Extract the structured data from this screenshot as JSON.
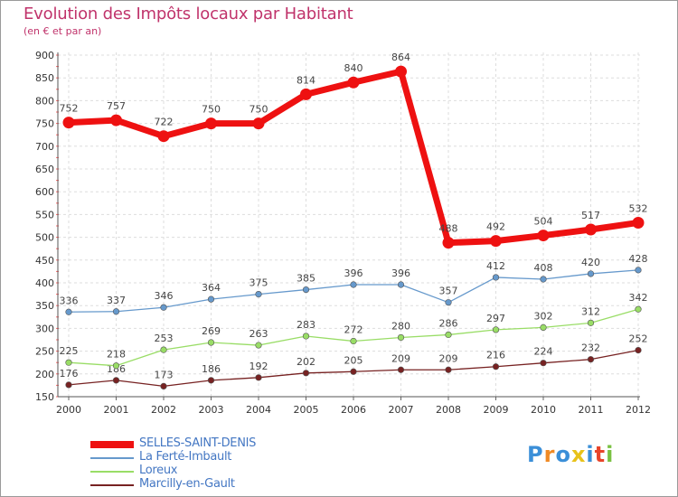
{
  "header": {
    "title": "Evolution des Impôts locaux par Habitant",
    "subtitle": "(en € et par an)"
  },
  "chart_data": {
    "type": "line",
    "title": "Evolution des Impôts locaux par Habitant",
    "subtitle": "(en € et par an)",
    "xlabel": "",
    "ylabel": "",
    "ylim": [
      150,
      900
    ],
    "yticks": [
      150,
      200,
      250,
      300,
      350,
      400,
      450,
      500,
      550,
      600,
      650,
      700,
      750,
      800,
      850,
      900
    ],
    "x": [
      "2000",
      "2001",
      "2002",
      "2003",
      "2004",
      "2005",
      "2006",
      "2007",
      "2008",
      "2009",
      "2010",
      "2011",
      "2012"
    ],
    "grid": true,
    "legend_position": "bottom-left",
    "series": [
      {
        "name": "SELLES-SAINT-DENIS",
        "color": "#ee1111",
        "values": [
          752,
          757,
          722,
          750,
          750,
          814,
          840,
          864,
          488,
          492,
          504,
          517,
          532
        ]
      },
      {
        "name": "La Ferté-Imbault",
        "color": "#6699cc",
        "values": [
          336,
          337,
          346,
          364,
          375,
          385,
          396,
          396,
          357,
          412,
          408,
          420,
          428
        ]
      },
      {
        "name": "Loreux",
        "color": "#99dd66",
        "values": [
          225,
          218,
          253,
          269,
          263,
          283,
          272,
          280,
          286,
          297,
          302,
          312,
          342
        ]
      },
      {
        "name": "Marcilly-en-Gault",
        "color": "#772222",
        "values": [
          176,
          186,
          173,
          186,
          192,
          202,
          205,
          209,
          209,
          216,
          224,
          232,
          252
        ]
      }
    ]
  },
  "logo": {
    "letters": [
      "P",
      "r",
      "o",
      "x",
      "i",
      "t",
      "i"
    ],
    "colors": [
      "#3b8fd8",
      "#f08a24",
      "#3b8fd8",
      "#e8c21a",
      "#3b8fd8",
      "#e8442a",
      "#7ac142"
    ]
  }
}
